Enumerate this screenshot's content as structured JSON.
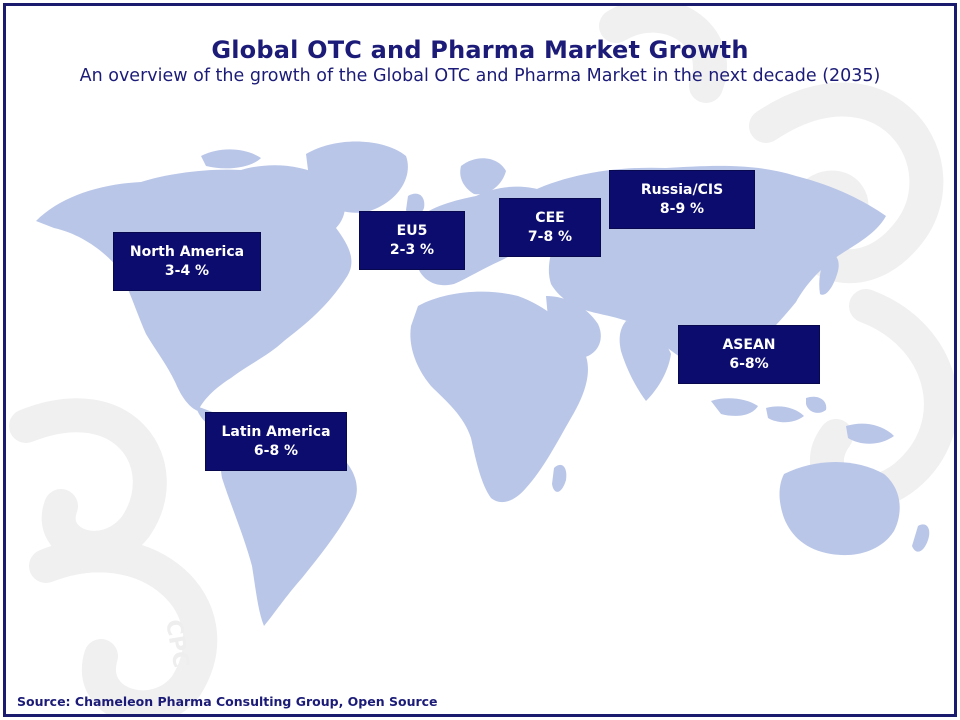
{
  "title": "Global OTC and Pharma Market Growth",
  "subtitle": "An overview of the growth of the Global OTC and Pharma Market in the next decade (2035)",
  "regions": [
    {
      "name": "North America",
      "growth": "3-4 %"
    },
    {
      "name": "EU5",
      "growth": "2-3 %"
    },
    {
      "name": "CEE",
      "growth": "7-8 %"
    },
    {
      "name": "Russia/CIS",
      "growth": "8-9 %"
    },
    {
      "name": "ASEAN",
      "growth": "6-8%"
    },
    {
      "name": "Latin America",
      "growth": "6-8 %"
    }
  ],
  "source": "Source:  Chameleon Pharma Consulting Group, Open Source",
  "colors": {
    "frame": "#1a1a6e",
    "title": "#1c1c78",
    "label_bg": "#0c0c6e",
    "land": "#b9c6e8",
    "watermark": "#f1f1f1"
  }
}
